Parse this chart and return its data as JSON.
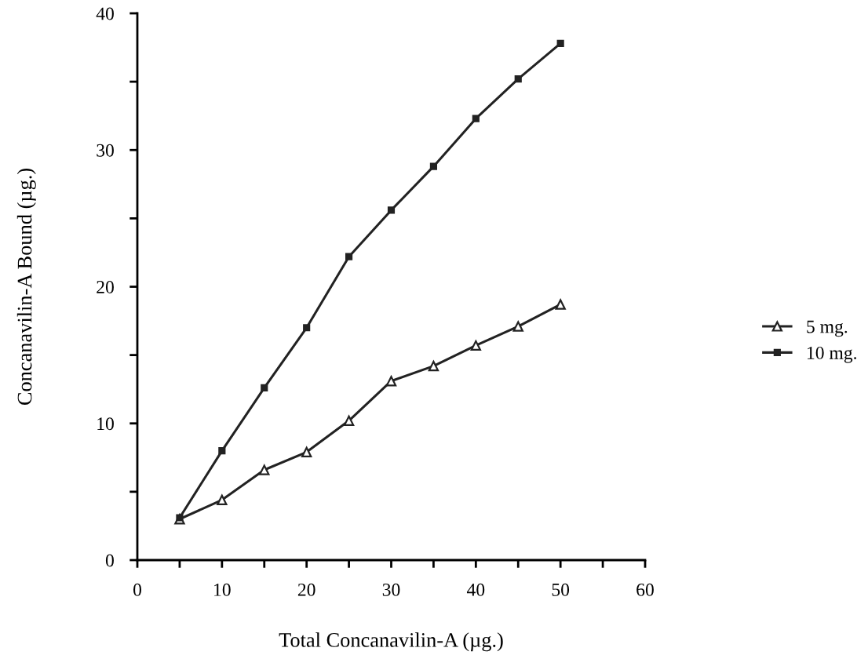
{
  "chart_data": {
    "type": "line",
    "xlabel": "Total Concanavilin-A (µg.)",
    "ylabel": "Concanavilin-A Bound (µg.)",
    "x": [
      5,
      10,
      15,
      20,
      25,
      30,
      35,
      40,
      45,
      50
    ],
    "series": [
      {
        "name": "5 mg.",
        "color": "#222222",
        "marker": "triangle",
        "values": [
          3.0,
          4.4,
          6.6,
          7.9,
          10.2,
          13.1,
          14.2,
          15.7,
          17.1,
          18.7
        ]
      },
      {
        "name": "10 mg.",
        "color": "#222222",
        "marker": "square",
        "values": [
          3.1,
          8.0,
          12.6,
          17.0,
          22.2,
          25.6,
          28.8,
          32.3,
          35.2,
          37.8
        ]
      }
    ],
    "xlim": [
      0,
      60
    ],
    "xticks": [
      0,
      {
        "value": 5,
        "label": null
      },
      10,
      {
        "value": 15,
        "label": null
      },
      20,
      {
        "value": 25,
        "label": null
      },
      30,
      {
        "value": 35,
        "label": null
      },
      40,
      {
        "value": 45,
        "label": null
      },
      50,
      {
        "value": 55,
        "label": null
      },
      60
    ],
    "ylim": [
      0,
      40
    ],
    "yticks": [
      0,
      {
        "value": 5,
        "label": null
      },
      10,
      {
        "value": 15,
        "label": null
      },
      20,
      {
        "value": 25,
        "label": null
      },
      30,
      {
        "value": 35,
        "label": null
      },
      40
    ],
    "grid": false,
    "legend": "right",
    "line_style": "solid"
  }
}
